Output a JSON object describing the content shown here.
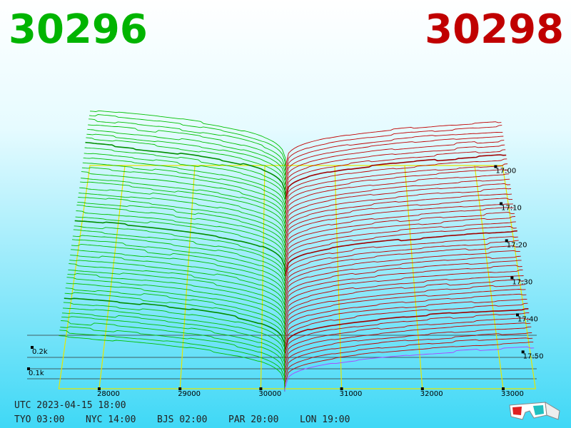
{
  "bid_price": 30296,
  "ask_price": 30298,
  "price_axis": {
    "ticks": [
      28000,
      29000,
      30000,
      31000,
      32000,
      33000
    ]
  },
  "time_axis": {
    "ticks": [
      "17:00",
      "17:10",
      "17:20",
      "17:30",
      "17:40",
      "17:50"
    ]
  },
  "depth_axis": {
    "ticks": [
      {
        "value": 200,
        "label": "0.2k"
      },
      {
        "value": 100,
        "label": "0.1k"
      }
    ]
  },
  "clock": {
    "utc": "UTC 2023-04-15 18:00",
    "zones": [
      "TYO 03:00",
      "NYC 14:00",
      "BJS 02:00",
      "PAR 20:00",
      "LON 19:00"
    ]
  }
}
